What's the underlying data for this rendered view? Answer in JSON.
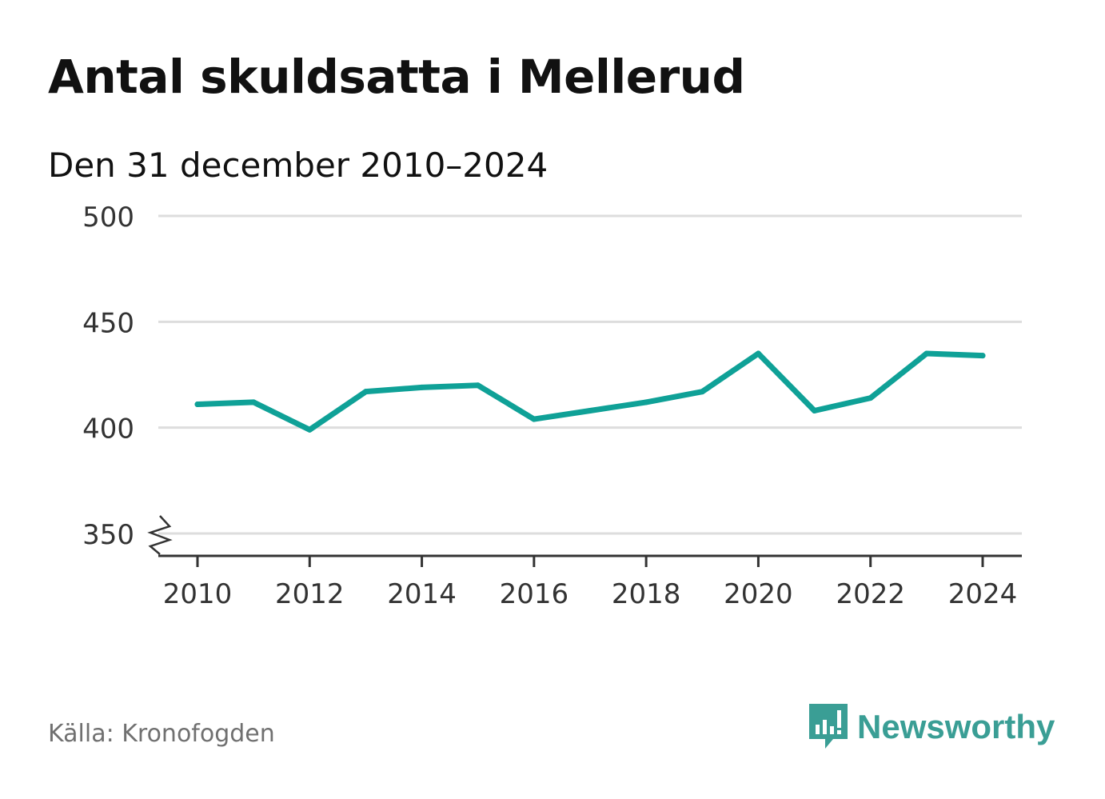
{
  "title": "Antal skuldsatta i Mellerud",
  "subtitle": "Den 31 december 2010–2024",
  "source": "Källa: Kronofogden",
  "brand": {
    "name": "Newsworthy",
    "color": "#3a9e95"
  },
  "colors": {
    "line": "#0fa197",
    "grid": "#dddddd",
    "axis": "#333333",
    "text": "#333333"
  },
  "chart_data": {
    "type": "line",
    "title": "Antal skuldsatta i Mellerud",
    "subtitle": "Den 31 december 2010–2024",
    "xlabel": "",
    "ylabel": "",
    "ylim": [
      350,
      500
    ],
    "xlim": [
      2010,
      2024
    ],
    "y_axis_break": true,
    "y_ticks": [
      350,
      400,
      450,
      500
    ],
    "x_ticks": [
      2010,
      2012,
      2014,
      2016,
      2018,
      2020,
      2022,
      2024
    ],
    "grid": true,
    "series": [
      {
        "name": "Antal skuldsatta",
        "x": [
          2010,
          2011,
          2012,
          2013,
          2014,
          2015,
          2016,
          2017,
          2018,
          2019,
          2020,
          2021,
          2022,
          2023,
          2024
        ],
        "values": [
          411,
          412,
          399,
          417,
          419,
          420,
          404,
          408,
          412,
          417,
          435,
          408,
          414,
          435,
          434
        ]
      }
    ]
  }
}
